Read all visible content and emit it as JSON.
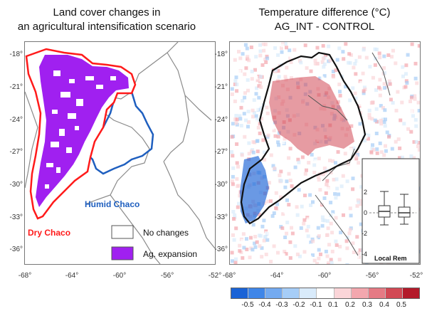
{
  "left_panel": {
    "title_line1": "Land cover changes in",
    "title_line2": "an agricultural intensification scenario",
    "label_humid": "Humid Chaco",
    "label_dry": "Dry Chaco",
    "legend": [
      {
        "label": "No changes",
        "color": "#ffffff"
      },
      {
        "label": "Ag. expansion",
        "color": "#a020f0"
      }
    ],
    "colors": {
      "dry_chaco_outline": "#ff1a1a",
      "humid_chaco_outline": "#1f5fbf",
      "ag_expansion": "#a020f0"
    }
  },
  "right_panel": {
    "title_line1": "Temperature difference (°C)",
    "title_line2": "AG_INT - CONTROL",
    "inset_label": "Local Rem",
    "inset_ticks": [
      "2",
      "0",
      "-2",
      "-4"
    ]
  },
  "axes": {
    "lat_ticks": [
      "-18°",
      "-21°",
      "-24°",
      "-27°",
      "-30°",
      "-33°",
      "-36°"
    ],
    "lon_ticks": [
      "-68°",
      "-64°",
      "-60°",
      "-56°",
      "-52°"
    ]
  },
  "colorbar": {
    "labels": [
      "-0.5",
      "-0.4",
      "-0.3",
      "-0.2",
      "-0.1",
      "0.1",
      "0.2",
      "0.3",
      "0.4",
      "0.5"
    ],
    "colors": [
      "#1a63d6",
      "#3f86e8",
      "#74aaf0",
      "#a6cdf7",
      "#d9ebfb",
      "#ffffff",
      "#fbd5d8",
      "#f3a7ae",
      "#e57a84",
      "#d24955",
      "#b31a2a"
    ]
  }
}
